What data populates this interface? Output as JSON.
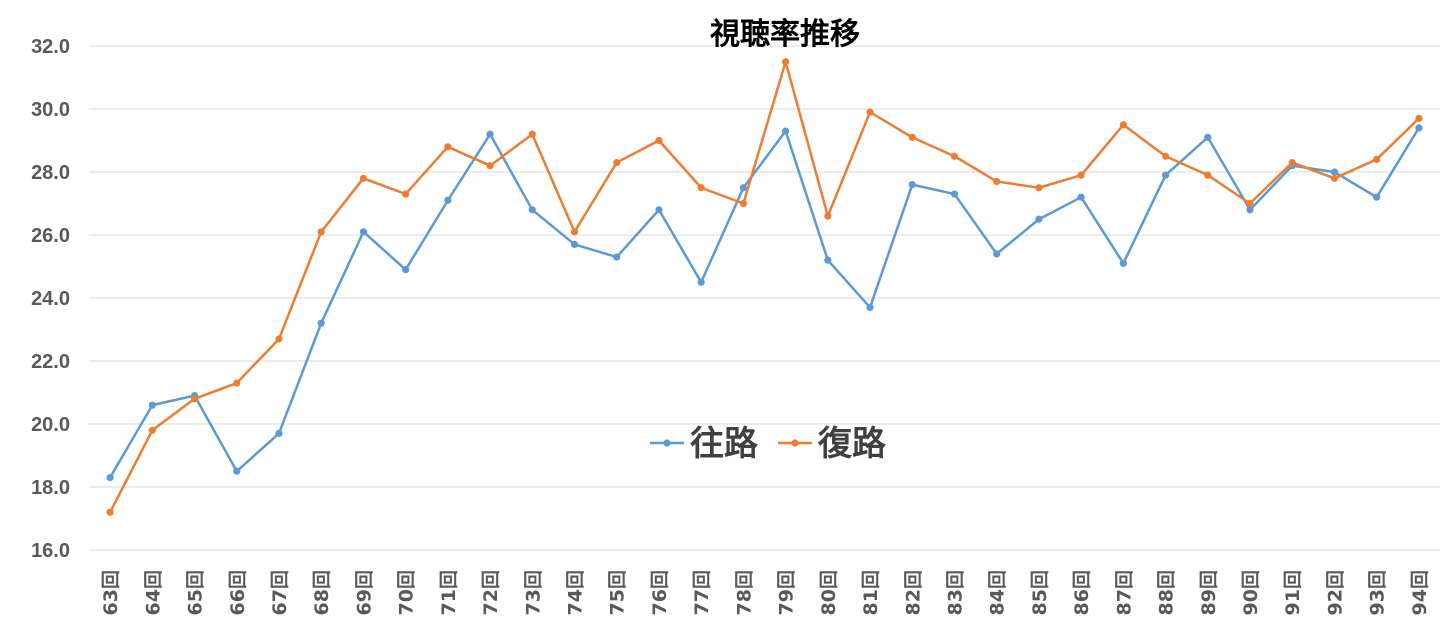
{
  "chart_data": {
    "type": "line",
    "title": "視聴率推移",
    "xlabel": "",
    "ylabel": "",
    "categories": [
      "63回",
      "64回",
      "65回",
      "66回",
      "67回",
      "68回",
      "69回",
      "70回",
      "71回",
      "72回",
      "73回",
      "74回",
      "75回",
      "76回",
      "77回",
      "78回",
      "79回",
      "80回",
      "81回",
      "82回",
      "83回",
      "84回",
      "85回",
      "86回",
      "87回",
      "88回",
      "89回",
      "90回",
      "91回",
      "92回",
      "93回",
      "94回"
    ],
    "series": [
      {
        "name": "往路",
        "color": "#5b9bd5",
        "values": [
          18.3,
          20.6,
          20.9,
          18.5,
          19.7,
          23.2,
          26.1,
          24.9,
          27.1,
          29.2,
          26.8,
          25.7,
          25.3,
          26.8,
          24.5,
          27.5,
          29.3,
          25.2,
          23.7,
          27.6,
          27.3,
          25.4,
          26.5,
          27.2,
          25.1,
          27.9,
          29.1,
          26.8,
          28.2,
          28.0,
          27.2,
          29.4
        ]
      },
      {
        "name": "復路",
        "color": "#ed7d31",
        "values": [
          17.2,
          19.8,
          20.8,
          21.3,
          22.7,
          26.1,
          27.8,
          27.3,
          28.8,
          28.2,
          29.2,
          26.1,
          28.3,
          29.0,
          27.5,
          27.0,
          31.5,
          26.6,
          29.9,
          29.1,
          28.5,
          27.7,
          27.5,
          27.9,
          29.5,
          28.5,
          27.9,
          27.0,
          28.3,
          27.8,
          28.4,
          29.7
        ]
      }
    ],
    "ylim": [
      16.0,
      32.0
    ],
    "yticks": [
      "16.0",
      "18.0",
      "20.0",
      "22.0",
      "24.0",
      "26.0",
      "28.0",
      "30.0",
      "32.0"
    ],
    "grid": true,
    "legend_placement": "center"
  }
}
